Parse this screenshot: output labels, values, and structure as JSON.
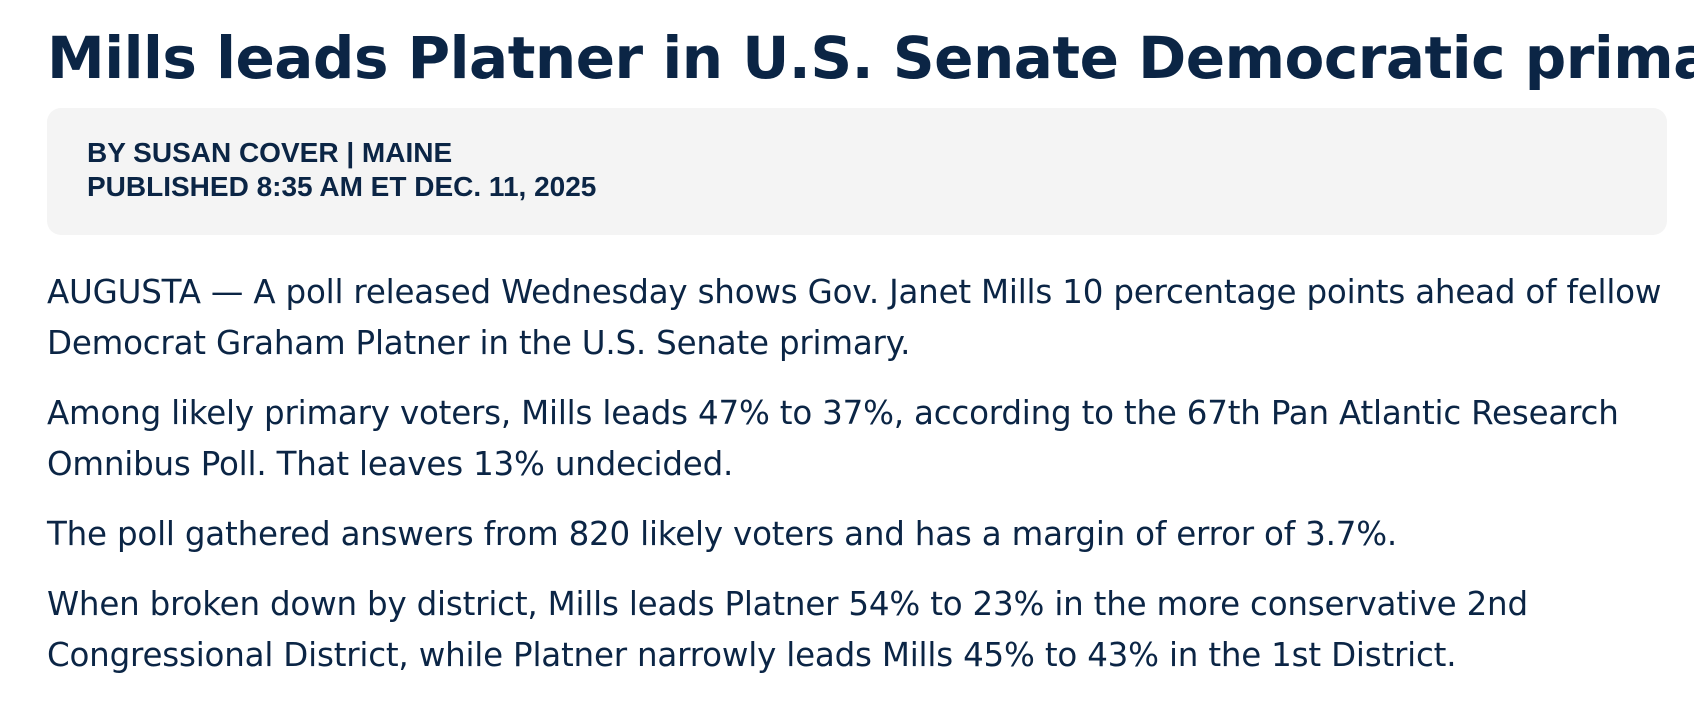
{
  "article": {
    "headline": "Mills leads Platner in U.S. Senate Democratic primary",
    "byline": "BY SUSAN COVER | MAINE",
    "published": "PUBLISHED 8:35 AM ET DEC. 11, 2025",
    "paragraphs": [
      "AUGUSTA — A poll released Wednesday shows Gov. Janet Mills 10 percentage points ahead of fellow Democrat Graham Platner in the U.S. Senate primary.",
      "Among likely primary voters, Mills leads 47% to 37%, according to the 67th Pan Atlantic Research Omnibus Poll. That leaves 13% undecided.",
      "The poll gathered answers from 820 likely voters and has a margin of error of 3.7%.",
      "When broken down by district, Mills leads Platner 54% to 23% in the more conservative 2nd Congressional District, while Platner narrowly leads Mills 45% to 43% in the 1st District."
    ]
  },
  "colors": {
    "text": "#0b2545",
    "byline_background": "#f4f4f4",
    "page_background": "#ffffff"
  }
}
